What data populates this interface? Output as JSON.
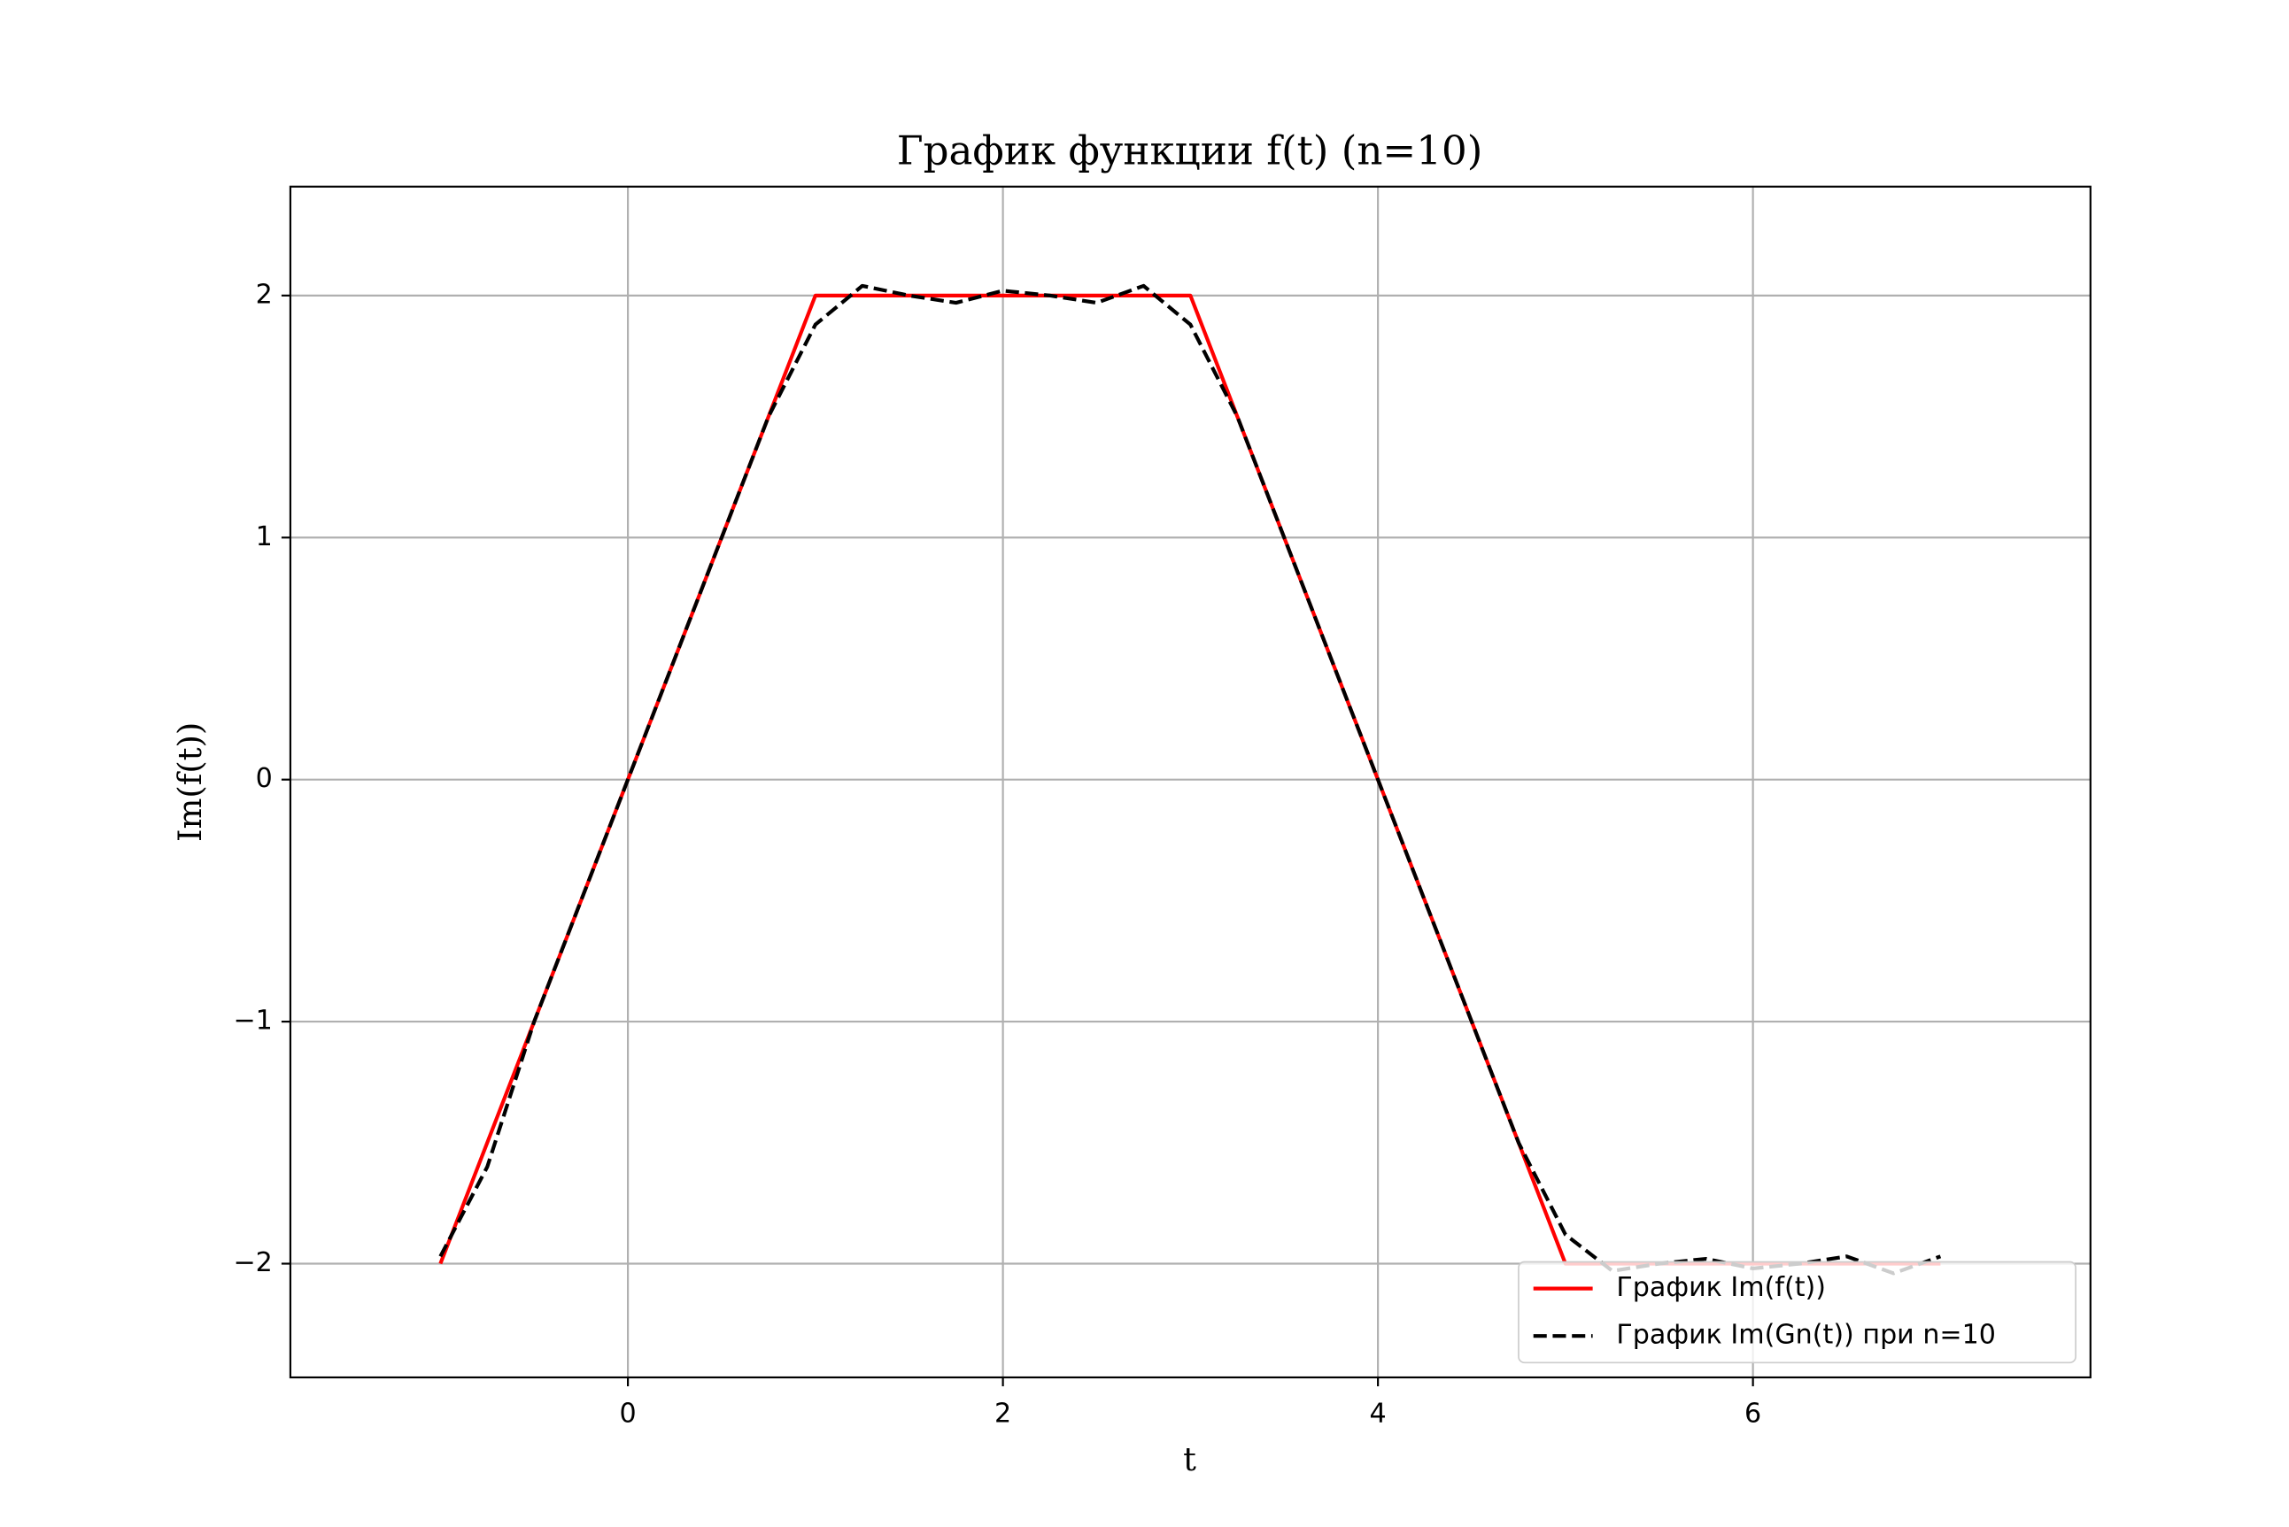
{
  "chart_data": {
    "type": "line",
    "title": "График функции f(t) (n=10)",
    "x_label": "t",
    "y_label": "Im(f(t))",
    "xlim": [
      -1.8,
      7.8
    ],
    "ylim": [
      -2.47,
      2.45
    ],
    "xticks": [
      0,
      2,
      4,
      6
    ],
    "yticks": [
      {
        "value": -2,
        "label": "−2"
      },
      {
        "value": -1,
        "label": "−1"
      },
      0,
      1,
      2
    ],
    "grid": true,
    "legend": "lower right",
    "series": [
      {
        "name": "График Im(f(t))",
        "color": "#ff0000",
        "dash": false,
        "x": [
          -1,
          1,
          3,
          5,
          7
        ],
        "values": [
          -2,
          2,
          2,
          -2,
          -2
        ]
      },
      {
        "name": "График Im(Gn(t)) при n=10",
        "color": "#000000",
        "dash": true,
        "x": [
          -1,
          -0.75,
          -0.5,
          -0.25,
          0,
          0.25,
          0.5,
          0.75,
          1,
          1.25,
          1.5,
          1.75,
          2,
          2.25,
          2.5,
          2.75,
          3,
          3.25,
          3.5,
          3.75,
          4,
          4.25,
          4.5,
          4.75,
          5,
          5.25,
          5.5,
          5.75,
          6,
          6.25,
          6.5,
          6.75,
          7
        ],
        "values": [
          -1.97,
          -1.6,
          -1.0,
          -0.5,
          0,
          0.5,
          1.0,
          1.5,
          1.88,
          2.04,
          2.0,
          1.97,
          2.02,
          2.0,
          1.97,
          2.04,
          1.88,
          1.5,
          1.0,
          0.5,
          0,
          -0.5,
          -1.0,
          -1.5,
          -1.88,
          -2.03,
          -2.0,
          -1.98,
          -2.02,
          -2.0,
          -1.97,
          -2.04,
          -1.97
        ]
      }
    ]
  }
}
